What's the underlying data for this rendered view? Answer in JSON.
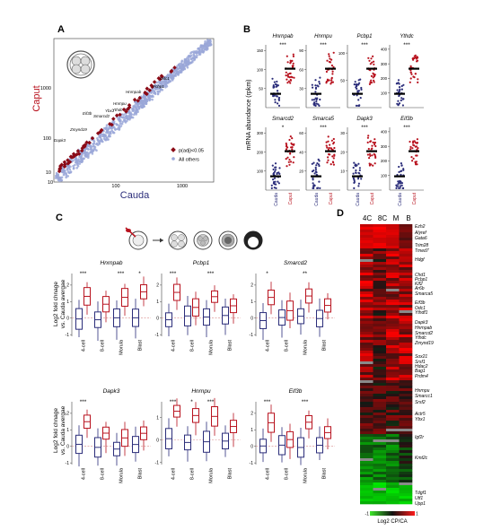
{
  "panels": {
    "A": {
      "letter": "A",
      "xlabel": "Cauda",
      "ylabel": "Caput",
      "xticks": [
        "10",
        "100",
        "1000"
      ],
      "yticks": [
        "10",
        "100",
        "1000"
      ],
      "legend": {
        "sig": "p(adj)<0.05",
        "other": "All others"
      },
      "gene_labels": [
        "Odc1",
        "Pcbp1",
        "Hnrnpab",
        "Hnrnpu",
        "Ybx1",
        "Ythdc",
        "Smarcd2",
        "Eif3b",
        "Zmynd19",
        "Dapk3"
      ]
    },
    "B": {
      "letter": "B",
      "ylabel": "mRNA abundance (rpkm)",
      "xcats": [
        "Cauda",
        "Caput"
      ],
      "genes": [
        {
          "name": "Hnrnpab",
          "star": "***",
          "yticks": [
            "50",
            "100",
            "150"
          ]
        },
        {
          "name": "Hnrnpu",
          "star": "***",
          "yticks": [
            "30",
            "60",
            "90"
          ]
        },
        {
          "name": "Pcbp1",
          "star": "***",
          "yticks": [
            "50",
            "100"
          ]
        },
        {
          "name": "Ythdc",
          "star": "***",
          "yticks": [
            "100",
            "200",
            "300",
            "400"
          ]
        },
        {
          "name": "Smarcd2",
          "star": "*",
          "yticks": [
            "100",
            "200",
            "300"
          ]
        },
        {
          "name": "Smarca5",
          "star": "***",
          "yticks": [
            "20",
            "40",
            "60"
          ]
        },
        {
          "name": "Dapk3",
          "star": "***",
          "yticks": [
            "10",
            "20",
            "30"
          ]
        },
        {
          "name": "Eif3b",
          "star": "***",
          "yticks": [
            "100",
            "200",
            "300",
            "400"
          ]
        }
      ]
    },
    "C": {
      "letter": "C",
      "ylabel1": "Log2 fold chnage",
      "ylabel2": "vs. Cauda avergae",
      "xcats": [
        "4-cell",
        "8-cell",
        "Morula",
        "Blast"
      ],
      "genes": [
        {
          "name": "Hnrnpab",
          "stars": [
            "***",
            "",
            "***",
            "*"
          ],
          "yticks": [
            "-1",
            "0",
            "1",
            "2"
          ]
        },
        {
          "name": "Pcbp1",
          "stars": [
            "***",
            "",
            "***",
            ""
          ],
          "yticks": [
            "-1",
            "0",
            "1",
            "2"
          ]
        },
        {
          "name": "Smarcd2",
          "stars": [
            "*",
            "",
            "**",
            ""
          ],
          "yticks": [
            "-1",
            "0",
            "1",
            "2"
          ]
        },
        {
          "name": "Dapk3",
          "stars": [
            "***",
            "",
            "",
            ""
          ],
          "yticks": [
            "-1",
            "0",
            "1",
            "2"
          ]
        },
        {
          "name": "Hnrnpu",
          "stars": [
            "***",
            "*",
            "***",
            ""
          ],
          "yticks": [
            "-1",
            "0",
            "1"
          ]
        },
        {
          "name": "Eif3b",
          "stars": [
            "***",
            "",
            "***",
            ""
          ],
          "yticks": [
            "-1",
            "0",
            "1",
            "2"
          ]
        }
      ]
    },
    "D": {
      "letter": "D",
      "columns": [
        "4C",
        "8C",
        "M",
        "B"
      ],
      "gene_labels": [
        "Ezh2",
        "Alyref",
        "Gata6",
        "Trim28",
        "Tmed7",
        "Hdgf",
        "Chd1",
        "Pcbp1",
        "Klf2",
        "Ar6b",
        "Smarca5",
        "Eif3b",
        "Odc1",
        "Ythdf1",
        "Dapk3",
        "Hnrnpab",
        "Smarcd2",
        "Ythdc",
        "Zmynd19",
        "Sox21",
        "Srsf1",
        "Hdac2",
        "Bag1",
        "Prdm4",
        "Hnrnpu",
        "Smarcc1",
        "Srsf2",
        "Actr5",
        "Ybx1",
        "Igf2r",
        "Kmt2c",
        "Tdgf1",
        "Utf1",
        "Upp1"
      ],
      "legend_label": "Log2 CP/CA",
      "legend_min": "-1",
      "legend_max": "1"
    }
  },
  "colors": {
    "blue": "#2b2d7a",
    "red": "#b8121e",
    "scatter": "#9aa7d8",
    "sig": "#8b0a16"
  }
}
